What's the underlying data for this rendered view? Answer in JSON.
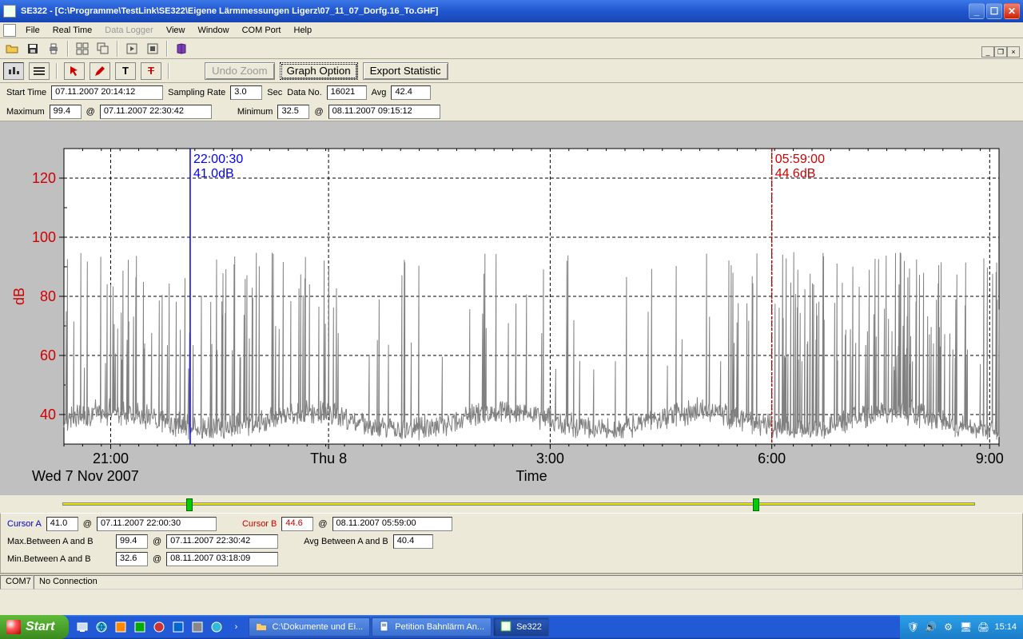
{
  "window": {
    "title": "SE322 - [C:\\Programme\\TestLink\\SE322\\Eigene Lärmmessungen Ligerz\\07_11_07_Dorfg.16_To.GHF]"
  },
  "menu": {
    "items": [
      "File",
      "Real Time",
      "Data Logger",
      "View",
      "Window",
      "COM Port",
      "Help"
    ],
    "disabled_index": 2
  },
  "toolbar2": {
    "undo_zoom": "Undo Zoom",
    "graph_option": "Graph Option",
    "export_statistic": "Export Statistic"
  },
  "info": {
    "start_time_lbl": "Start Time",
    "start_time_val": "07.11.2007 20:14:12",
    "sampling_rate_lbl": "Sampling Rate",
    "sampling_rate_val": "3.0",
    "sampling_rate_unit": "Sec",
    "data_no_lbl": "Data No.",
    "data_no_val": "16021",
    "avg_lbl": "Avg",
    "avg_val": "42.4",
    "max_lbl": "Maximum",
    "max_val": "99.4",
    "at1": "@",
    "max_time": "07.11.2007 22:30:42",
    "min_lbl": "Minimum",
    "min_val": "32.5",
    "at2": "@",
    "min_time": "08.11.2007 09:15:12"
  },
  "chart": {
    "y_label": "dB",
    "y_min": 30,
    "y_max": 130,
    "y_ticks": [
      40,
      60,
      80,
      100,
      120
    ],
    "y_tick_color": "#d00000",
    "x_label": "Time",
    "x_sublabel": "Wed 7 Nov 2007",
    "x_ticks": [
      {
        "t": 0.05,
        "label": "21:00"
      },
      {
        "t": 0.283,
        "label": "Thu 8"
      },
      {
        "t": 0.52,
        "label": "3:00"
      },
      {
        "t": 0.757,
        "label": "6:00"
      },
      {
        "t": 0.99,
        "label": "9:00"
      }
    ],
    "bg": "#ffffff",
    "grid_color": "#000000",
    "trace_color": "#808080",
    "trace_seed": 7,
    "baseline_db": 35,
    "peak_db": 95,
    "cursor_a": {
      "t": 0.135,
      "time": "22:00:30",
      "db": "41.0dB",
      "color": "#0000ff"
    },
    "cursor_b": {
      "t": 0.757,
      "time": "05:59:00",
      "db": "44.6dB",
      "color": "#d00000"
    },
    "font_size_axis": 18,
    "font_size_cursor": 16
  },
  "slider": {
    "a_pos": 0.135,
    "b_pos": 0.757
  },
  "cursor_panel": {
    "cursor_a_lbl": "Cursor A",
    "cursor_a_val": "41.0",
    "cursor_a_time": "07.11.2007 22:00:30",
    "cursor_b_lbl": "Cursor B",
    "cursor_b_val": "44.6",
    "cursor_b_time": "08.11.2007 05:59:00",
    "at": "@",
    "max_between_lbl": "Max.Between A and B",
    "max_between_val": "99.4",
    "max_between_time": "07.11.2007 22:30:42",
    "min_between_lbl": "Min.Between A and B",
    "min_between_val": "32.6",
    "min_between_time": "08.11.2007 03:18:09",
    "avg_between_lbl": "Avg Between A and B",
    "avg_between_val": "40.4"
  },
  "status": {
    "port": "COM7",
    "conn": "No Connection"
  },
  "taskbar": {
    "start": "Start",
    "tasks": [
      {
        "label": "C:\\Dokumente und Ei...",
        "icon": "folder"
      },
      {
        "label": "Petition Bahnlärm An...",
        "icon": "doc"
      },
      {
        "label": "Se322",
        "icon": "app",
        "active": true
      }
    ],
    "clock": "15:14"
  }
}
